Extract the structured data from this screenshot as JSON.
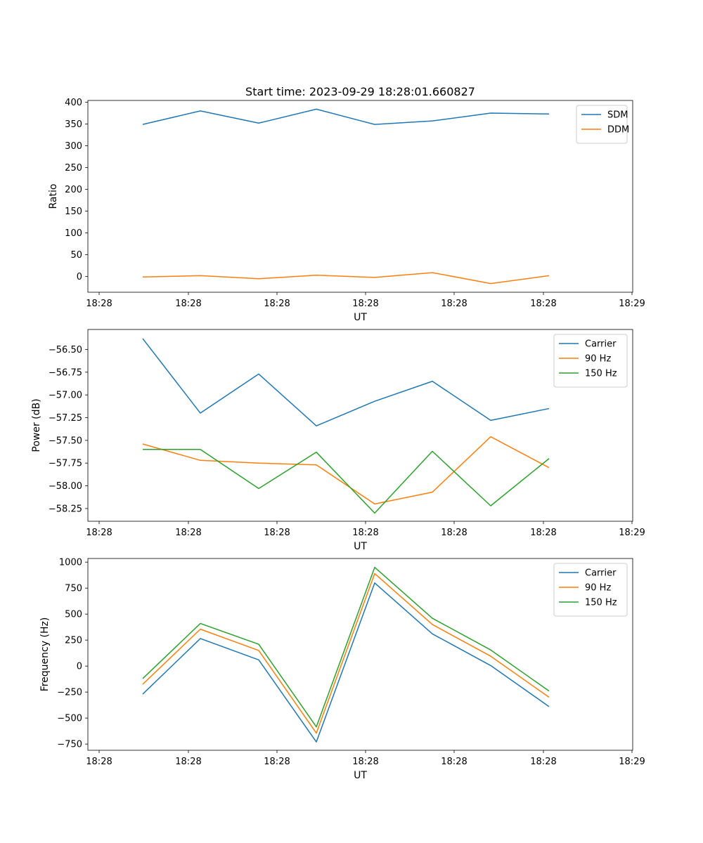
{
  "chart_data": [
    {
      "type": "line",
      "title": "Start time: 2023-09-29 18:28:01.660827",
      "xlabel": "UT",
      "ylabel": "Ratio",
      "xtick_labels": [
        "18:28",
        "18:28",
        "18:28",
        "18:28",
        "18:28",
        "18:28",
        "18:29"
      ],
      "ylim": [
        -36,
        404
      ],
      "yticks": [
        0,
        50,
        100,
        150,
        200,
        250,
        300,
        350,
        400
      ],
      "ytick_labels": [
        "0",
        "50",
        "100",
        "150",
        "200",
        "250",
        "300",
        "350",
        "400"
      ],
      "legend_position": "top-right",
      "series": [
        {
          "name": "SDM",
          "color": "#1f77b4",
          "values": [
            349,
            380,
            352,
            384,
            349,
            357,
            375,
            373
          ]
        },
        {
          "name": "DDM",
          "color": "#ff7f0e",
          "values": [
            -1,
            2,
            -5,
            3,
            -2,
            9,
            -16,
            2
          ]
        }
      ]
    },
    {
      "type": "line",
      "title": "",
      "xlabel": "UT",
      "ylabel": "Power (dB)",
      "xtick_labels": [
        "18:28",
        "18:28",
        "18:28",
        "18:28",
        "18:28",
        "18:28",
        "18:29"
      ],
      "ylim": [
        -58.39,
        -56.28
      ],
      "yticks": [
        -58.25,
        -58.0,
        -57.75,
        -57.5,
        -57.25,
        -57.0,
        -56.75,
        -56.5
      ],
      "ytick_labels": [
        "−58.25",
        "−58.00",
        "−57.75",
        "−57.50",
        "−57.25",
        "−57.00",
        "−56.75",
        "−56.50"
      ],
      "legend_position": "top-right",
      "series": [
        {
          "name": "Carrier",
          "color": "#1f77b4",
          "values": [
            -56.38,
            -57.2,
            -56.77,
            -57.34,
            -57.07,
            -56.85,
            -57.28,
            -57.15
          ]
        },
        {
          "name": "90 Hz",
          "color": "#ff7f0e",
          "values": [
            -57.54,
            -57.72,
            -57.75,
            -57.77,
            -58.2,
            -58.07,
            -57.46,
            -57.8
          ]
        },
        {
          "name": "150 Hz",
          "color": "#2ca02c",
          "values": [
            -57.6,
            -57.6,
            -58.03,
            -57.63,
            -58.3,
            -57.62,
            -58.22,
            -57.7
          ]
        }
      ]
    },
    {
      "type": "line",
      "title": "",
      "xlabel": "UT",
      "ylabel": "Frequency (Hz)",
      "xtick_labels": [
        "18:28",
        "18:28",
        "18:28",
        "18:28",
        "18:28",
        "18:28",
        "18:29"
      ],
      "ylim": [
        -810,
        1035
      ],
      "yticks": [
        -750,
        -500,
        -250,
        0,
        250,
        500,
        750,
        1000
      ],
      "ytick_labels": [
        "−750",
        "−500",
        "−250",
        "0",
        "250",
        "500",
        "750",
        "1000"
      ],
      "legend_position": "top-right",
      "series": [
        {
          "name": "Carrier",
          "color": "#1f77b4",
          "values": [
            -270,
            265,
            60,
            -730,
            800,
            310,
            5,
            -390
          ]
        },
        {
          "name": "90 Hz",
          "color": "#ff7f0e",
          "values": [
            -175,
            355,
            150,
            -645,
            890,
            400,
            95,
            -300
          ]
        },
        {
          "name": "150 Hz",
          "color": "#2ca02c",
          "values": [
            -120,
            410,
            210,
            -585,
            950,
            460,
            155,
            -240
          ]
        }
      ]
    }
  ]
}
